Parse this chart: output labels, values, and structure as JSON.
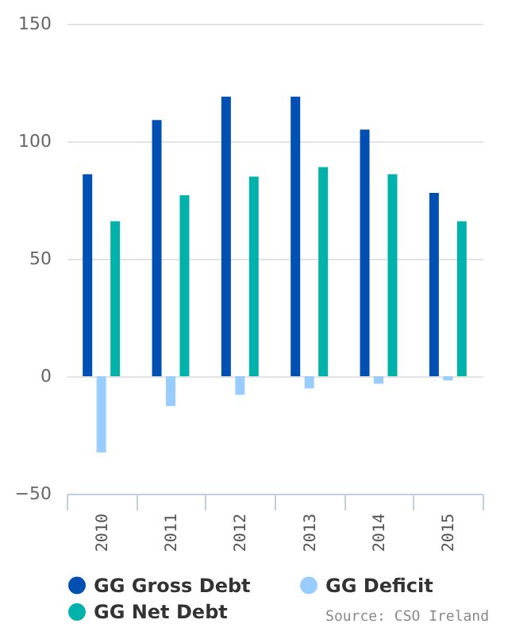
{
  "chart_data": {
    "type": "bar",
    "categories": [
      "2010",
      "2011",
      "2012",
      "2013",
      "2014",
      "2015"
    ],
    "series": [
      {
        "name": "GG Gross Debt",
        "color": "#0050b4",
        "values": [
          86,
          109,
          119,
          119,
          105,
          78
        ]
      },
      {
        "name": "GG Deficit",
        "color": "#99ccff",
        "values": [
          -32.4,
          -12.7,
          -7.9,
          -5.2,
          -3.2,
          -1.8
        ]
      },
      {
        "name": "GG Net Debt",
        "color": "#00b2a9",
        "values": [
          66,
          77,
          85,
          89,
          86,
          66
        ]
      }
    ],
    "ylim": [
      -50,
      150
    ],
    "yticks": [
      -50,
      0,
      50,
      100,
      150
    ],
    "grid": "y",
    "legend": "bottom",
    "annotations": [
      "Source: CSO Ireland"
    ]
  }
}
